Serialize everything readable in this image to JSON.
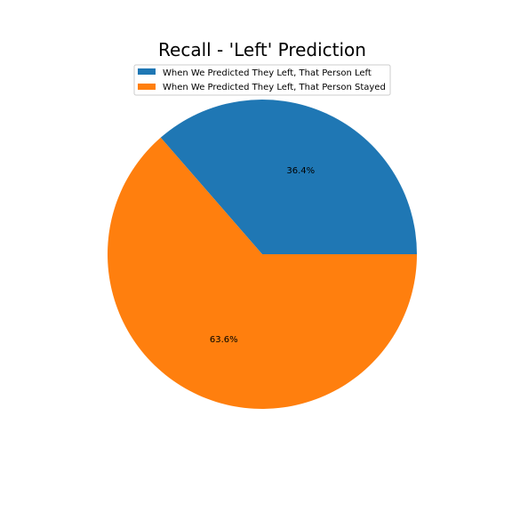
{
  "chart_data": {
    "type": "pie",
    "title": "Recall - 'Left' Prediction",
    "legend_position": "top-center",
    "slices": [
      {
        "label": "When We Predicted They Left, That Person Left",
        "value": 36.4,
        "pct_label": "36.4%",
        "color": "#1f77b4"
      },
      {
        "label": "When We Predicted They Left, That Person Stayed",
        "value": 63.6,
        "pct_label": "63.6%",
        "color": "#ff7f0e"
      }
    ]
  }
}
